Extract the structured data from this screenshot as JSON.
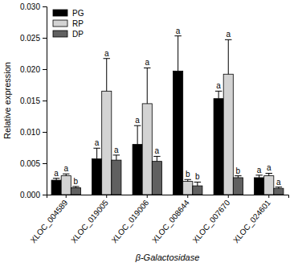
{
  "chart_data": {
    "type": "bar",
    "x_label": "β-Galactosidase",
    "y_label": "Relative expression",
    "categories": [
      "XLOC_004589",
      "XLOC_019005",
      "XLOC_019006",
      "XLOC_008644",
      "XLOC_007670",
      "XLOC_024601"
    ],
    "series": [
      {
        "name": "PG",
        "color": "#000000",
        "values": [
          0.0023,
          0.0057,
          0.008,
          0.0197,
          0.0153,
          0.0027
        ],
        "errors": [
          0.0003,
          0.0017,
          0.003,
          0.0056,
          0.0012,
          0.0004
        ],
        "letters": [
          "a",
          "a",
          "a",
          "a",
          "a",
          "a"
        ]
      },
      {
        "name": "RP",
        "color": "#d3d3d3",
        "values": [
          0.003,
          0.0165,
          0.0145,
          0.0021,
          0.0192,
          0.003
        ],
        "errors": [
          0.0003,
          0.0052,
          0.0057,
          0.0003,
          0.0055,
          0.0004
        ],
        "letters": [
          "a",
          "a",
          "a",
          "b",
          "a",
          "a"
        ]
      },
      {
        "name": "DP",
        "color": "#606060",
        "values": [
          0.0011,
          0.0055,
          0.0053,
          0.0014,
          0.0027,
          0.001
        ],
        "errors": [
          0.0002,
          0.0008,
          0.0008,
          0.0006,
          0.0003,
          0.0002
        ],
        "letters": [
          "b",
          "a",
          "a",
          "b",
          "b",
          "a"
        ]
      }
    ],
    "ylim": [
      0,
      0.03
    ],
    "yticks": [
      {
        "value": 0,
        "label": "0.000"
      },
      {
        "value": 0.005,
        "label": "0.005"
      },
      {
        "value": 0.01,
        "label": "0.010"
      },
      {
        "value": 0.015,
        "label": "0.015"
      },
      {
        "value": 0.02,
        "label": "0.020"
      },
      {
        "value": 0.025,
        "label": "0.025"
      },
      {
        "value": 0.03,
        "label": "0.030"
      }
    ],
    "legend": "upper left",
    "grid": false
  }
}
